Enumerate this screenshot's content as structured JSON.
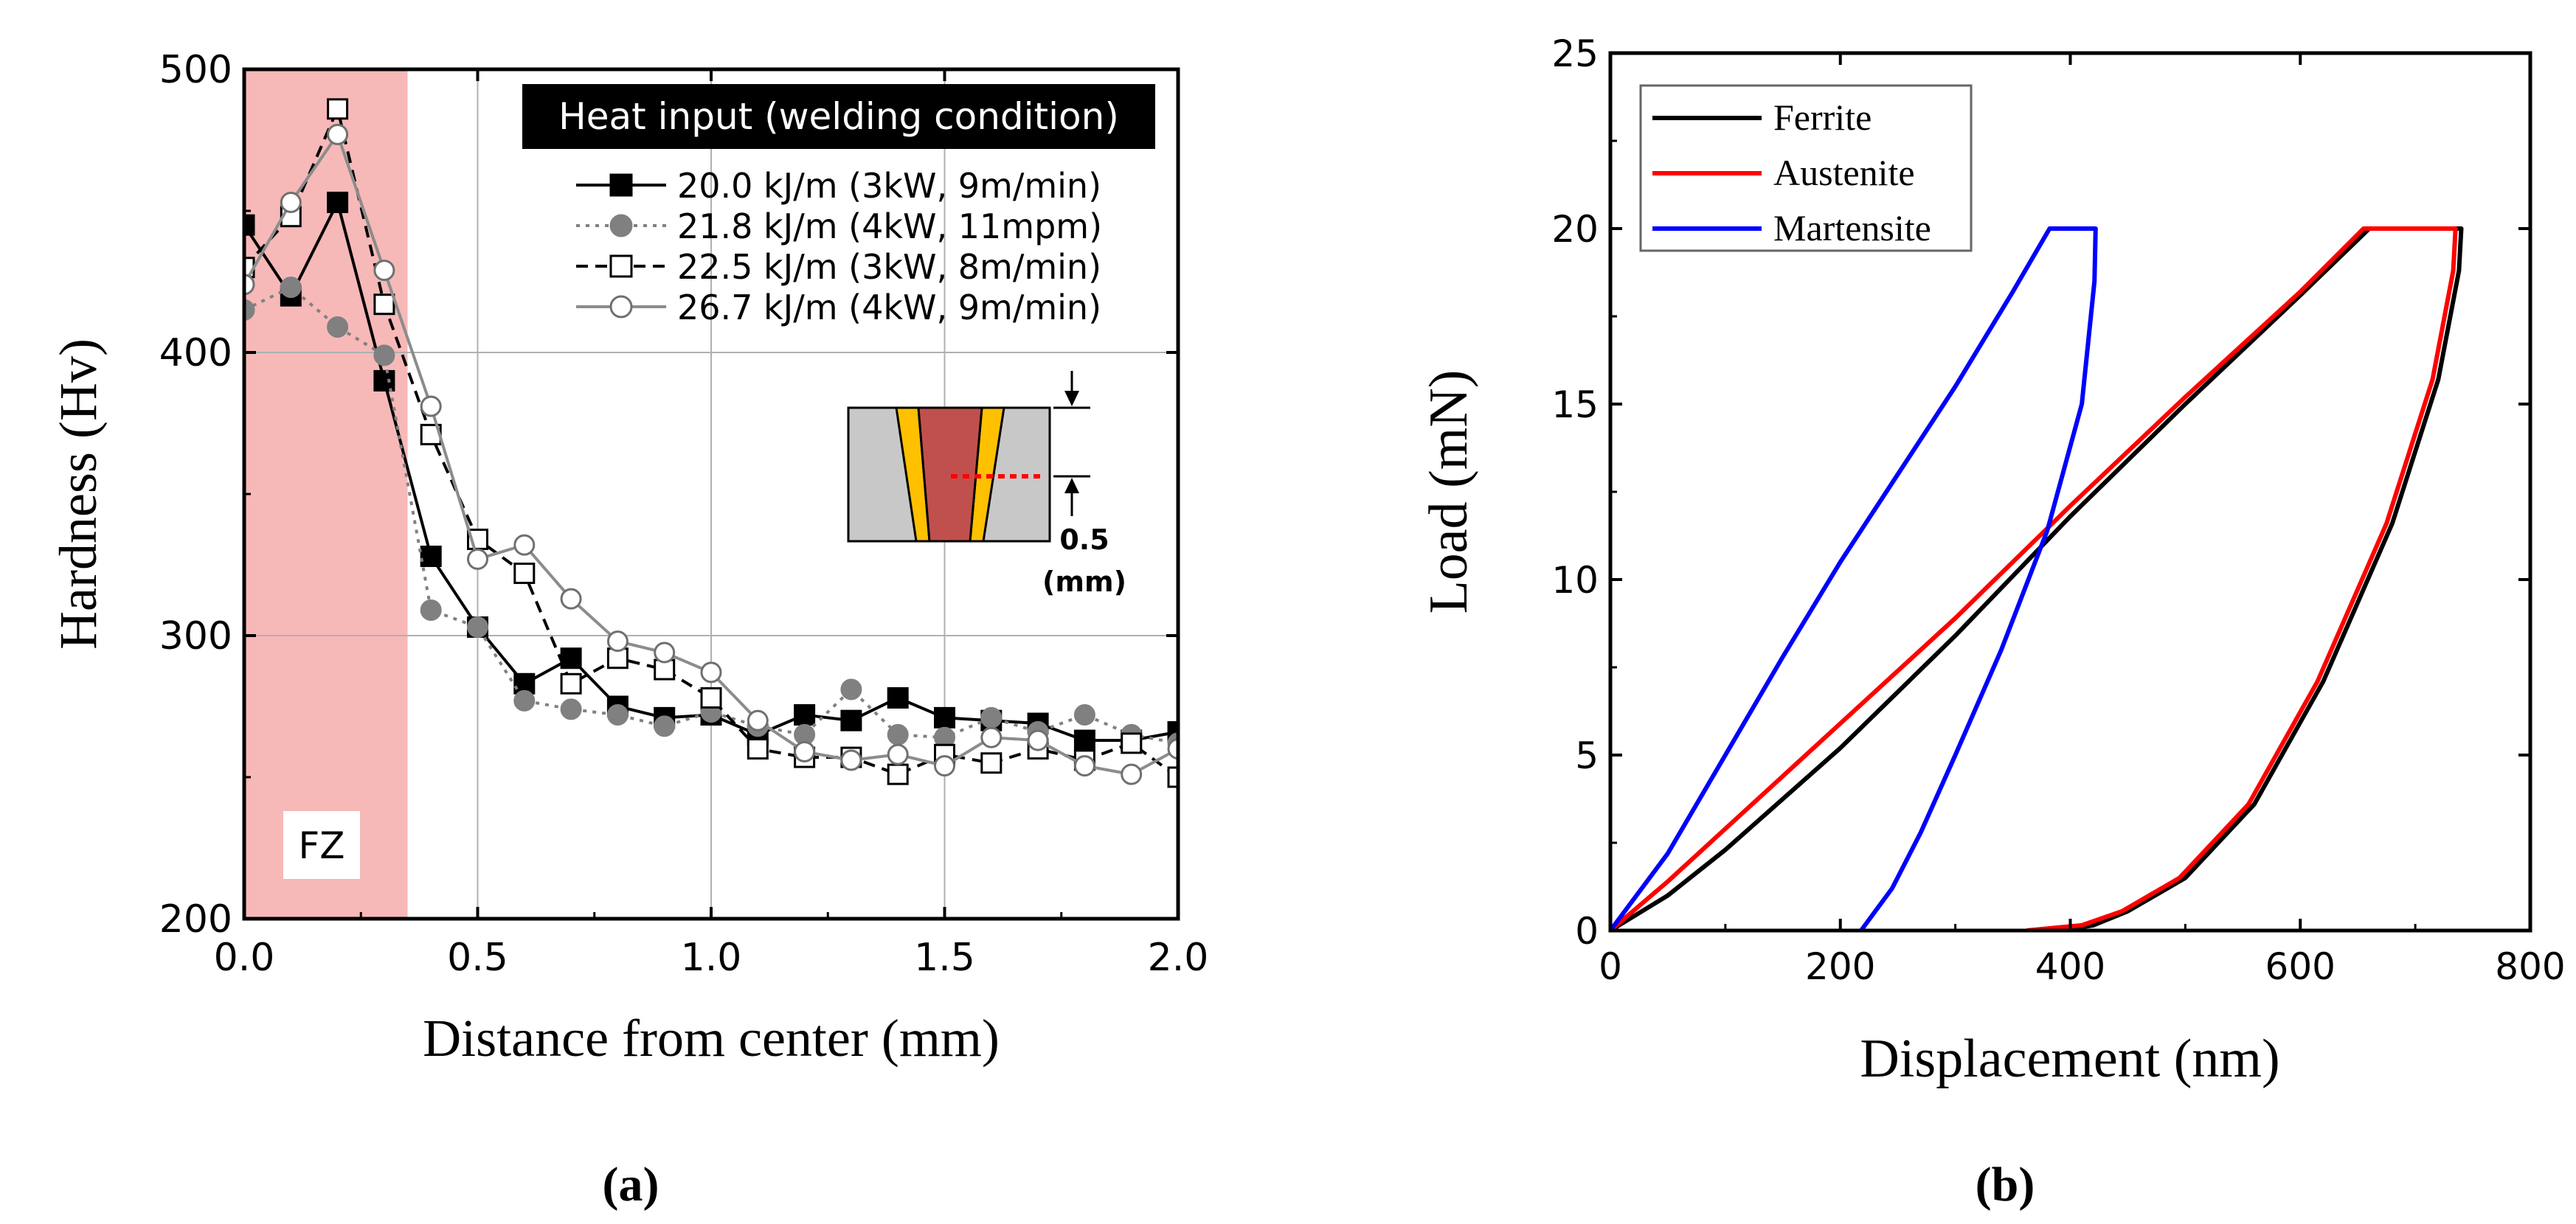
{
  "chart_data": [
    {
      "panel": "a",
      "panel_label": "(a)",
      "type": "line",
      "xlabel": "Distance from center (mm)",
      "ylabel": "Hardness (Hv)",
      "xlim": [
        0,
        2
      ],
      "ylim": [
        200,
        500
      ],
      "xticks": [
        "0.0",
        "0.5",
        "1.0",
        "1.5",
        "2.0"
      ],
      "yticks": [
        "200",
        "300",
        "400",
        "500"
      ],
      "grid": true,
      "fz_region": {
        "x_range": [
          0,
          0.35
        ],
        "label": "FZ",
        "color": "#f7b8b8"
      },
      "legend_title": "Heat input (welding condition)",
      "legend_position": "top-right",
      "x": [
        0.0,
        0.1,
        0.2,
        0.3,
        0.4,
        0.5,
        0.6,
        0.7,
        0.8,
        0.9,
        1.0,
        1.1,
        1.2,
        1.3,
        1.4,
        1.5,
        1.6,
        1.7,
        1.8,
        1.9,
        2.0
      ],
      "series": [
        {
          "name": "20.0 kJ/m (3kW, 9m/min)",
          "color": "#000000",
          "marker": "square-filled",
          "line": "solid",
          "values": [
            445,
            420,
            453,
            390,
            328,
            303,
            283,
            292,
            275,
            271,
            272,
            265,
            272,
            270,
            278,
            271,
            270,
            269,
            263,
            263,
            266
          ]
        },
        {
          "name": "21.8 kJ/m (4kW, 11mpm)",
          "color": "#808080",
          "marker": "circle-filled",
          "line": "dotted",
          "values": [
            415,
            423,
            409,
            399,
            309,
            303,
            277,
            274,
            272,
            268,
            273,
            268,
            265,
            281,
            265,
            264,
            271,
            266,
            272,
            265,
            262
          ]
        },
        {
          "name": "22.5 kJ/m (3kW, 8m/min)",
          "color": "#000000",
          "marker": "square-open",
          "line": "dashed",
          "values": [
            430,
            448,
            486,
            417,
            371,
            334,
            322,
            283,
            292,
            288,
            278,
            260,
            257,
            257,
            251,
            258,
            255,
            260,
            256,
            262,
            250
          ]
        },
        {
          "name": "26.7 kJ/m (4kW, 9m/min)",
          "color": "#8c8c8c",
          "marker": "circle-open",
          "line": "solid",
          "values": [
            424,
            453,
            477,
            429,
            381,
            327,
            332,
            313,
            298,
            294,
            287,
            270,
            259,
            256,
            258,
            254,
            264,
            263,
            254,
            251,
            260
          ]
        }
      ],
      "inset": {
        "label_value": "0.5",
        "label_unit": "(mm)",
        "colors": {
          "base": "#c8c8c8",
          "fz": "#c0504d",
          "haz": "#ffc000",
          "path": "#ff0000"
        }
      }
    },
    {
      "panel": "b",
      "panel_label": "(b)",
      "type": "line",
      "xlabel": "Displacement (nm)",
      "ylabel": "Load (mN)",
      "xlim": [
        0,
        800
      ],
      "ylim": [
        0,
        25
      ],
      "xticks": [
        "0",
        "200",
        "400",
        "600",
        "800"
      ],
      "yticks": [
        "0",
        "5",
        "10",
        "15",
        "20",
        "25"
      ],
      "grid": false,
      "legend_position": "top-left",
      "series": [
        {
          "name": "Ferrite",
          "color": "#000000",
          "x": [
            0,
            50,
            100,
            200,
            300,
            400,
            500,
            600,
            660,
            740,
            738,
            720,
            680,
            620,
            560,
            500,
            450,
            420,
            390
          ],
          "y": [
            0,
            1.0,
            2.3,
            5.2,
            8.4,
            11.8,
            15.0,
            18.1,
            20.0,
            20.0,
            18.8,
            15.7,
            11.6,
            7.1,
            3.6,
            1.5,
            0.55,
            0.15,
            0
          ]
        },
        {
          "name": "Austenite",
          "color": "#ff0000",
          "x": [
            0,
            50,
            100,
            200,
            300,
            400,
            500,
            600,
            655,
            735,
            733,
            715,
            675,
            615,
            555,
            495,
            445,
            410,
            362
          ],
          "y": [
            0,
            1.4,
            2.9,
            5.9,
            8.9,
            12.1,
            15.2,
            18.2,
            20.0,
            20.0,
            18.8,
            15.7,
            11.6,
            7.1,
            3.6,
            1.5,
            0.55,
            0.15,
            0
          ]
        },
        {
          "name": "Martensite",
          "color": "#0000ff",
          "x": [
            0,
            50,
            100,
            150,
            200,
            250,
            300,
            350,
            382,
            422,
            421,
            410,
            380,
            340,
            300,
            270,
            245,
            218
          ],
          "y": [
            0,
            2.2,
            5.0,
            7.8,
            10.5,
            13.0,
            15.5,
            18.2,
            20.0,
            20.0,
            18.5,
            15.0,
            11.4,
            8.0,
            5.0,
            2.8,
            1.2,
            0
          ]
        }
      ]
    }
  ]
}
